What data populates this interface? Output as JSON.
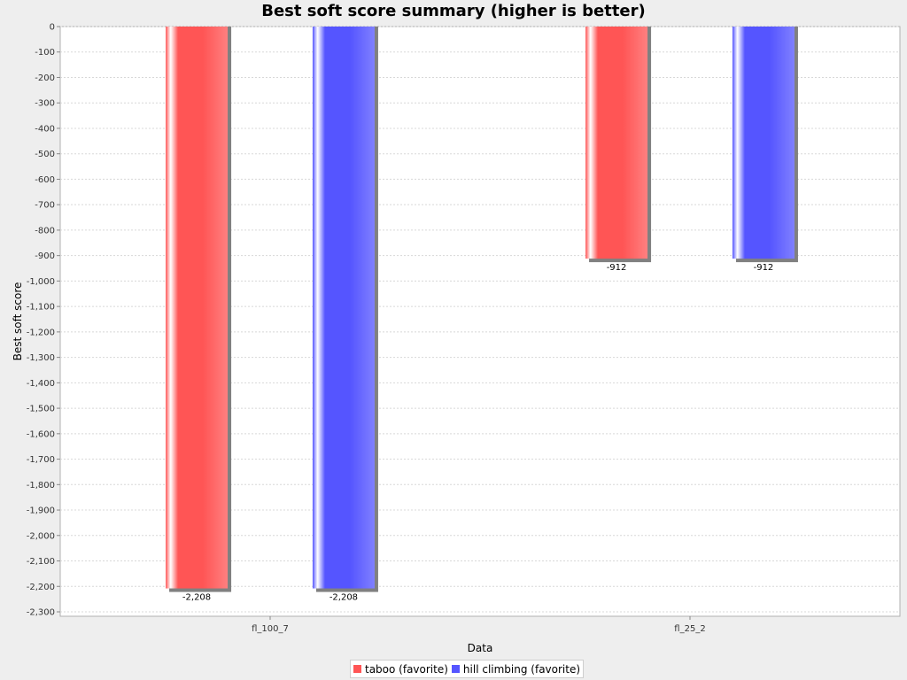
{
  "chart_data": {
    "type": "bar",
    "title": "Best soft score summary (higher is better)",
    "xlabel": "Data",
    "ylabel": "Best soft score",
    "categories": [
      "fl_100_7",
      "fl_25_2"
    ],
    "series": [
      {
        "name": "taboo (favorite)",
        "color": "#ff5555",
        "values": [
          -2208,
          -912
        ]
      },
      {
        "name": "hill climbing (favorite)",
        "color": "#5555ff",
        "values": [
          -2208,
          -912
        ]
      }
    ],
    "data_labels": [
      [
        "-2,208",
        "-912"
      ],
      [
        "-2,208",
        "-912"
      ]
    ],
    "ylim": [
      -2300,
      0
    ],
    "yticks": [
      0,
      -100,
      -200,
      -300,
      -400,
      -500,
      -600,
      -700,
      -800,
      -900,
      -1000,
      -1100,
      -1200,
      -1300,
      -1400,
      -1500,
      -1600,
      -1700,
      -1800,
      -1900,
      -2000,
      -2100,
      -2200,
      -2300
    ],
    "ytick_labels": [
      "0",
      "-100",
      "-200",
      "-300",
      "-400",
      "-500",
      "-600",
      "-700",
      "-800",
      "-900",
      "-1,000",
      "-1,100",
      "-1,200",
      "-1,300",
      "-1,400",
      "-1,500",
      "-1,600",
      "-1,700",
      "-1,800",
      "-1,900",
      "-2,000",
      "-2,100",
      "-2,200",
      "-2,300"
    ],
    "grid": true,
    "legend_position": "bottom-center"
  }
}
